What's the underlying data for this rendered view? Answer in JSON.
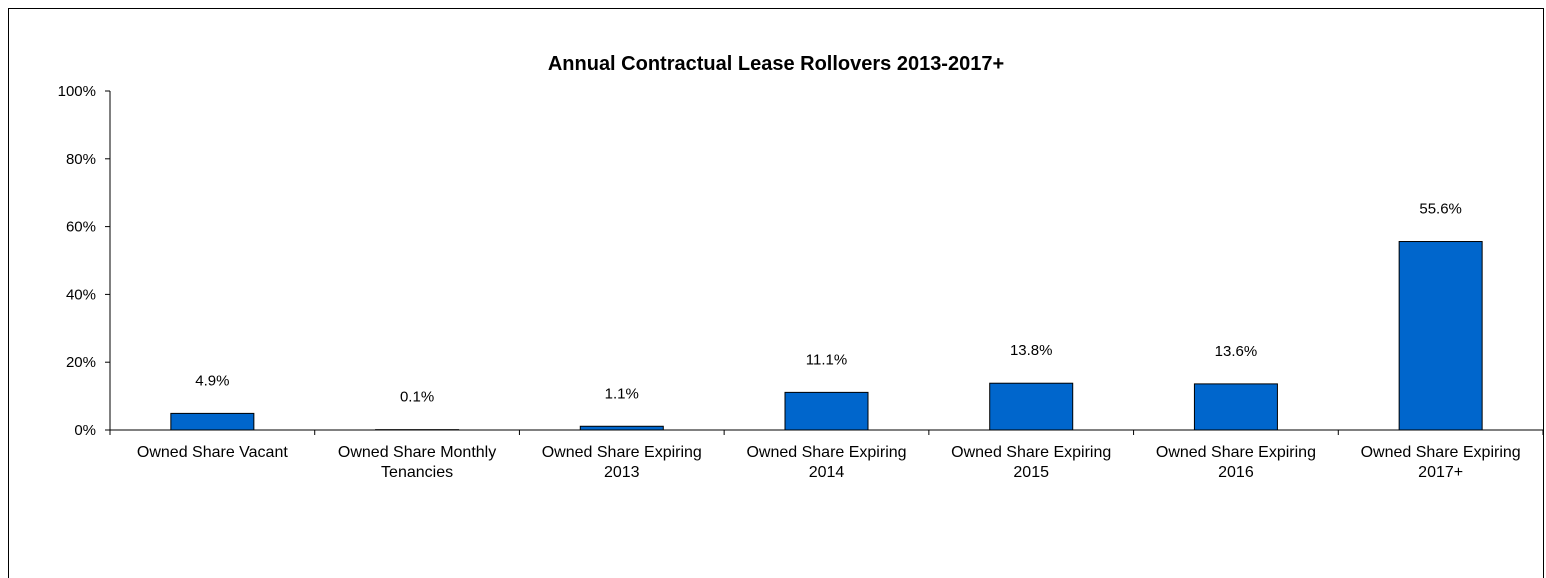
{
  "chart_data": {
    "type": "bar",
    "title": "Annual Contractual Lease Rollovers 2013-2017+",
    "xlabel": "",
    "ylabel": "",
    "ylim": [
      0,
      100
    ],
    "yticks": [
      "0%",
      "20%",
      "40%",
      "60%",
      "80%",
      "100%"
    ],
    "categories": [
      [
        "Owned Share Vacant"
      ],
      [
        "Owned Share Monthly",
        "Tenancies"
      ],
      [
        "Owned Share Expiring",
        "2013"
      ],
      [
        "Owned Share Expiring",
        "2014"
      ],
      [
        "Owned Share Expiring",
        "2015"
      ],
      [
        "Owned Share Expiring",
        "2016"
      ],
      [
        "Owned Share Expiring",
        "2017+"
      ]
    ],
    "values": [
      4.9,
      0.1,
      1.1,
      11.1,
      13.8,
      13.6,
      55.6
    ],
    "data_labels": [
      "4.9%",
      "0.1%",
      "1.1%",
      "11.1%",
      "13.8%",
      "13.6%",
      "55.6%"
    ],
    "bar_color": "#0066CC",
    "grid": false,
    "legend": "none"
  }
}
